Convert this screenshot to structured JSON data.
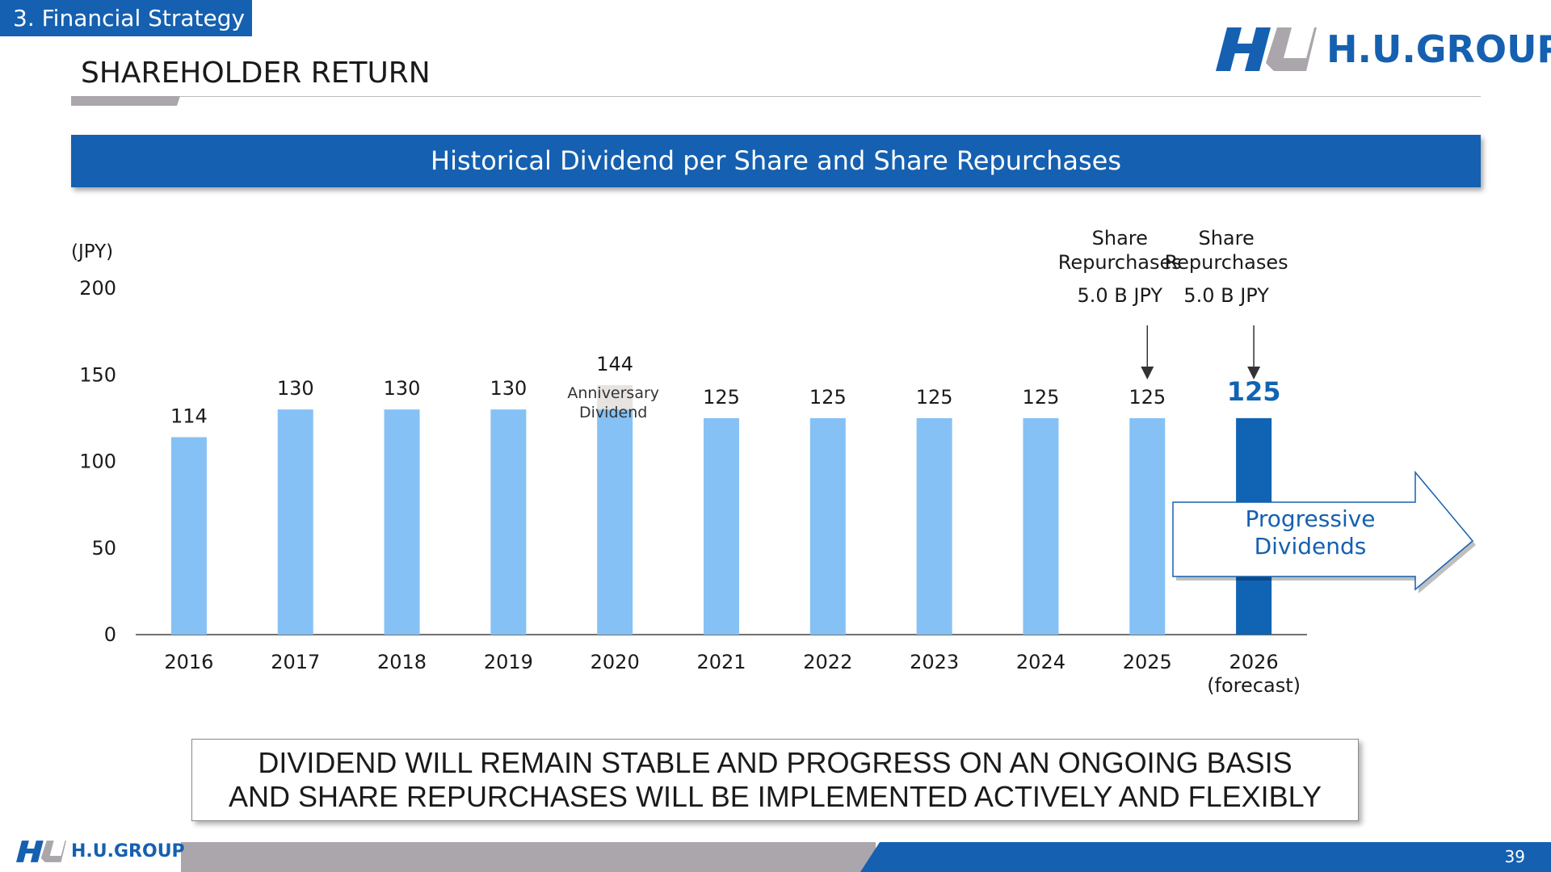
{
  "section_tag": "3. Financial Strategy",
  "page_title": "SHAREHOLDER RETURN",
  "logo_text": "H.U.GROUP",
  "banner_title": "Historical Dividend per Share and Share Repurchases",
  "message_lines": [
    "DIVIDEND WILL REMAIN STABLE AND PROGRESS ON AN ONGOING BASIS",
    "AND SHARE REPURCHASES WILL BE IMPLEMENTED ACTIVELY AND FLEXIBLY"
  ],
  "page_number": "39",
  "chart_data": {
    "type": "bar",
    "ylabel": "(JPY)",
    "ylim": [
      0,
      200
    ],
    "yticks": [
      0,
      50,
      100,
      150,
      200
    ],
    "categories": [
      "2016",
      "2017",
      "2018",
      "2019",
      "2020",
      "2021",
      "2022",
      "2023",
      "2024",
      "2025",
      "2026"
    ],
    "category_sublabels": [
      "",
      "",
      "",
      "",
      "",
      "",
      "",
      "",
      "",
      "",
      "(forecast)"
    ],
    "values": [
      114,
      130,
      130,
      130,
      144,
      125,
      125,
      125,
      125,
      125,
      125
    ],
    "value_labels": [
      "114",
      "130",
      "130",
      "130",
      "144",
      "125",
      "125",
      "125",
      "125",
      "125",
      "125"
    ],
    "bar_color": "#86c1f5",
    "highlight_color": "#1163b3",
    "highlight_index": 10,
    "anniversary": {
      "index": 4,
      "value": 14,
      "label_lines": [
        "Anniversary",
        "Dividend"
      ],
      "color": "#e6e3e0"
    },
    "repurchases": [
      {
        "index": 9,
        "label_lines": [
          "Share",
          "Repurchases"
        ],
        "amount": "5.0 B JPY"
      },
      {
        "index": 10,
        "label_lines": [
          "Share",
          "Repurchases"
        ],
        "amount": "5.0 B JPY"
      }
    ],
    "arrow_label_lines": [
      "Progressive",
      "Dividends"
    ],
    "legend": "none",
    "grid": false
  }
}
